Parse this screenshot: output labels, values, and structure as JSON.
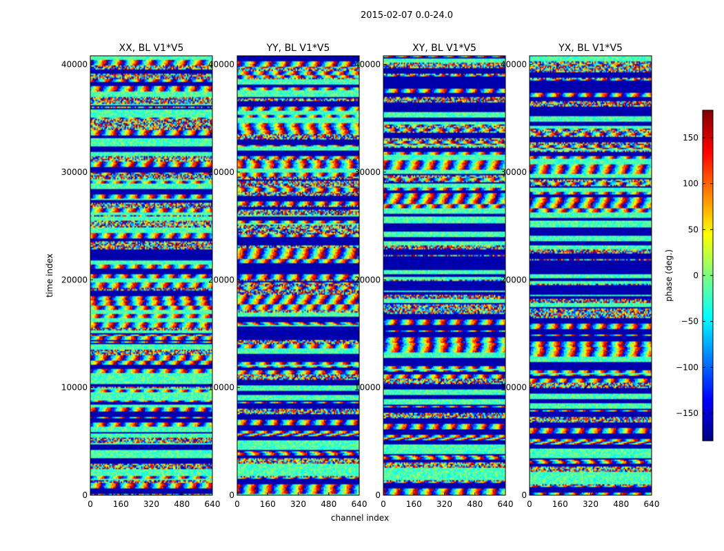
{
  "figure": {
    "suptitle": "2015-02-07 0.0-24.0"
  },
  "chart_data": [
    {
      "type": "heatmap",
      "title": "XX, BL V1*V5",
      "xlabel": "",
      "ylabel": "time index",
      "x_ticks": [
        0,
        160,
        320,
        480,
        640
      ],
      "y_ticks": [
        0,
        10000,
        20000,
        30000,
        40000
      ],
      "xlim": [
        0,
        640
      ],
      "ylim": [
        0,
        40800
      ],
      "value_range": [
        -180,
        180
      ]
    },
    {
      "type": "heatmap",
      "title": "YY, BL V1*V5",
      "xlabel": "channel index",
      "ylabel": "",
      "x_ticks": [
        0,
        160,
        320,
        480,
        640
      ],
      "y_ticks": [
        0,
        10000,
        20000,
        30000,
        40000
      ],
      "xlim": [
        0,
        640
      ],
      "ylim": [
        0,
        40800
      ],
      "value_range": [
        -180,
        180
      ]
    },
    {
      "type": "heatmap",
      "title": "XY, BL V1*V5",
      "xlabel": "",
      "ylabel": "",
      "x_ticks": [
        0,
        160,
        320,
        480,
        640
      ],
      "y_ticks": [
        0,
        10000,
        20000,
        30000,
        40000
      ],
      "xlim": [
        0,
        640
      ],
      "ylim": [
        0,
        40800
      ],
      "value_range": [
        -180,
        180
      ]
    },
    {
      "type": "heatmap",
      "title": "YX, BL V1*V5",
      "xlabel": "",
      "ylabel": "",
      "x_ticks": [
        0,
        160,
        320,
        480,
        640
      ],
      "y_ticks": [
        0,
        10000,
        20000,
        30000,
        40000
      ],
      "xlim": [
        0,
        640
      ],
      "ylim": [
        0,
        40800
      ],
      "value_range": [
        -180,
        180
      ]
    }
  ],
  "colorbar": {
    "label": "phase (deg.)",
    "ticks": [
      150,
      100,
      50,
      0,
      -50,
      -100,
      -150
    ],
    "range": [
      -180,
      180
    ],
    "colormap": "jet"
  }
}
